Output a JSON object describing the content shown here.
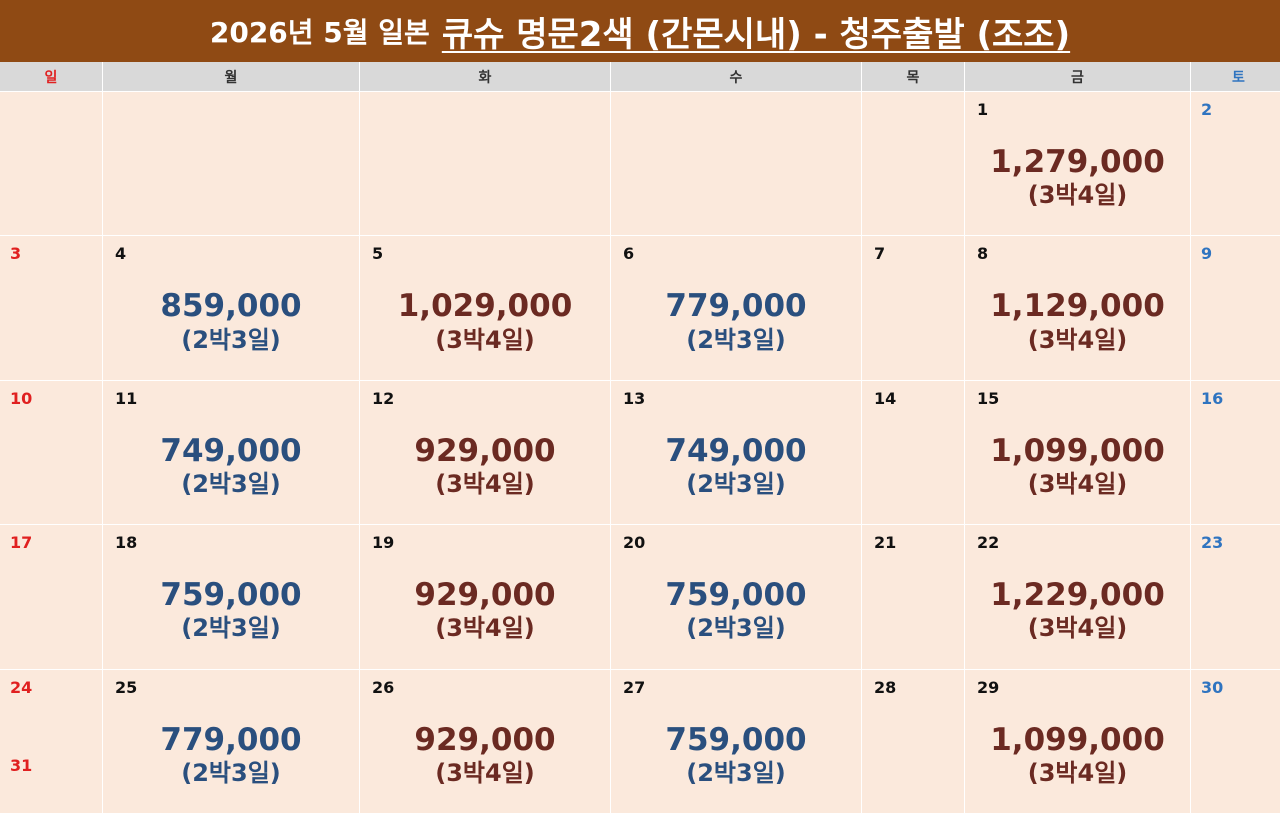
{
  "title": {
    "prefix": "2026년 5월 일본",
    "main": "큐슈 명문2색 (간몬시내) - 청주출발 (조조)"
  },
  "weekdays": [
    "일",
    "월",
    "화",
    "수",
    "목",
    "금",
    "토"
  ],
  "colors": {
    "header_bg": "#8f4a14",
    "cell_bg": "#fbe9dc",
    "sunday": "#e02020",
    "saturday": "#2f74c0",
    "price_2n3d": "#2a4f7e",
    "price_3n4d": "#6b2a22"
  },
  "weeks": [
    [
      {
        "day": ""
      },
      {
        "day": ""
      },
      {
        "day": ""
      },
      {
        "day": ""
      },
      {
        "day": ""
      },
      {
        "day": "1",
        "price": "1,279,000",
        "nights": "(3박4일)"
      },
      {
        "day": "2"
      }
    ],
    [
      {
        "day": "3"
      },
      {
        "day": "4",
        "price": "859,000",
        "nights": "(2박3일)"
      },
      {
        "day": "5",
        "price": "1,029,000",
        "nights": "(3박4일)"
      },
      {
        "day": "6",
        "price": "779,000",
        "nights": "(2박3일)"
      },
      {
        "day": "7"
      },
      {
        "day": "8",
        "price": "1,129,000",
        "nights": "(3박4일)"
      },
      {
        "day": "9"
      }
    ],
    [
      {
        "day": "10"
      },
      {
        "day": "11",
        "price": "749,000",
        "nights": "(2박3일)"
      },
      {
        "day": "12",
        "price": "929,000",
        "nights": "(3박4일)"
      },
      {
        "day": "13",
        "price": "749,000",
        "nights": "(2박3일)"
      },
      {
        "day": "14"
      },
      {
        "day": "15",
        "price": "1,099,000",
        "nights": "(3박4일)"
      },
      {
        "day": "16"
      }
    ],
    [
      {
        "day": "17"
      },
      {
        "day": "18",
        "price": "759,000",
        "nights": "(2박3일)"
      },
      {
        "day": "19",
        "price": "929,000",
        "nights": "(3박4일)"
      },
      {
        "day": "20",
        "price": "759,000",
        "nights": "(2박3일)"
      },
      {
        "day": "21"
      },
      {
        "day": "22",
        "price": "1,229,000",
        "nights": "(3박4일)"
      },
      {
        "day": "23"
      }
    ],
    [
      {
        "day": "24",
        "day2": "31"
      },
      {
        "day": "25",
        "price": "779,000",
        "nights": "(2박3일)"
      },
      {
        "day": "26",
        "price": "929,000",
        "nights": "(3박4일)"
      },
      {
        "day": "27",
        "price": "759,000",
        "nights": "(2박3일)"
      },
      {
        "day": "28"
      },
      {
        "day": "29",
        "price": "1,099,000",
        "nights": "(3박4일)"
      },
      {
        "day": "30"
      }
    ]
  ]
}
